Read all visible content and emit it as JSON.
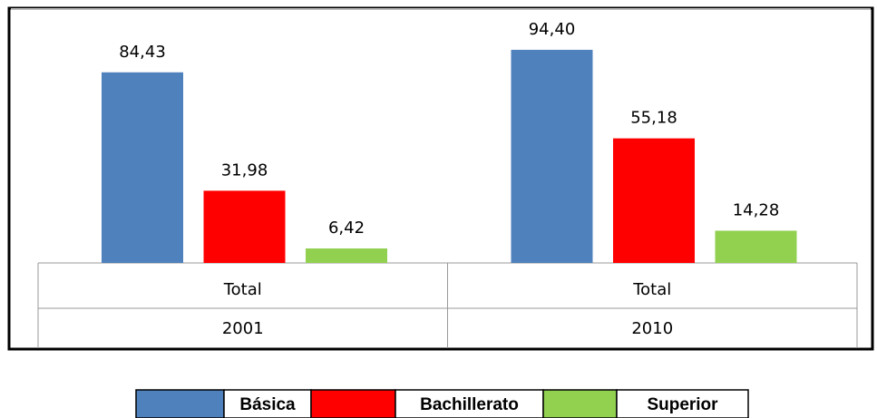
{
  "chart_data": {
    "type": "bar",
    "categories": [
      "2001",
      "2010"
    ],
    "category_groups": [
      "Total",
      "Total"
    ],
    "ylim": [
      0,
      100
    ],
    "series": [
      {
        "name": "Básica",
        "color": "#4f81bd",
        "values": [
          84.43,
          94.4
        ],
        "value_labels": [
          "84,43",
          "94,40"
        ]
      },
      {
        "name": "Bachillerato",
        "color": "#ff0000",
        "values": [
          31.98,
          55.18
        ],
        "value_labels": [
          "31,98",
          "55,18"
        ]
      },
      {
        "name": "Superior",
        "color": "#92d050",
        "values": [
          6.42,
          14.28
        ],
        "value_labels": [
          "6,42",
          "14,28"
        ]
      }
    ]
  }
}
